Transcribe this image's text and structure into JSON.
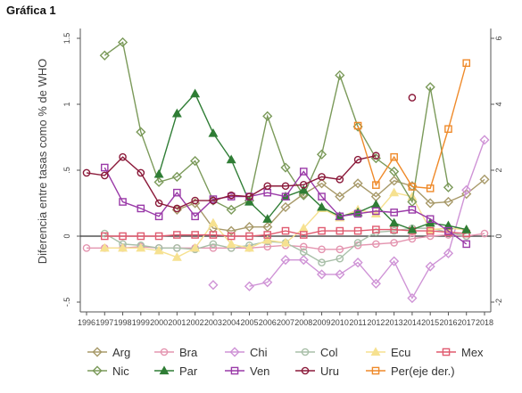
{
  "figure_title": "Gráfica 1",
  "chart_data": {
    "type": "line",
    "title": "",
    "ylabel": "Diferencia entre tasas como % de WHO",
    "xlabel": "",
    "x": [
      "1996",
      "1997",
      "1998",
      "1999",
      "2000",
      "2001",
      "2002",
      "2003",
      "2004",
      "2005",
      "2006",
      "2007",
      "2008",
      "2009",
      "2010",
      "2011",
      "2012",
      "2013",
      "2014",
      "2015",
      "2016",
      "2017",
      "2018"
    ],
    "ylim": [
      -0.5,
      1.5
    ],
    "yticks": [
      "-.5",
      "0",
      ".5",
      "1",
      "1.5"
    ],
    "ylim_right": [
      -2,
      6
    ],
    "yticks_right": [
      "-2",
      "0",
      "2",
      "4",
      "6"
    ],
    "zero_line": true,
    "grid": false,
    "legend_position": "bottom",
    "series": [
      {
        "name": "Arg",
        "color": "#a89a6a",
        "marker": "diamond",
        "axis": "left",
        "values": [
          null,
          null,
          null,
          null,
          null,
          0.2,
          0.25,
          0.06,
          0.04,
          0.07,
          0.07,
          0.22,
          0.32,
          0.4,
          0.3,
          0.4,
          0.3,
          0.42,
          0.38,
          0.25,
          0.26,
          0.32,
          0.43
        ]
      },
      {
        "name": "Bra",
        "color": "#e495b0",
        "marker": "circle",
        "axis": "left",
        "values": [
          -0.09,
          -0.09,
          -0.09,
          -0.08,
          -0.09,
          -0.09,
          -0.09,
          -0.09,
          -0.09,
          -0.09,
          -0.08,
          -0.07,
          -0.08,
          -0.1,
          -0.1,
          -0.07,
          -0.06,
          -0.05,
          -0.02,
          0.0,
          0.01,
          0.0,
          0.02
        ]
      },
      {
        "name": "Chi",
        "color": "#cf93d6",
        "marker": "diamond",
        "axis": "left",
        "values": [
          null,
          null,
          null,
          null,
          null,
          null,
          null,
          -0.37,
          null,
          -0.38,
          -0.35,
          -0.18,
          -0.18,
          -0.29,
          -0.29,
          -0.2,
          -0.36,
          -0.19,
          -0.47,
          -0.23,
          -0.13,
          0.35,
          0.73
        ]
      },
      {
        "name": "Col",
        "color": "#a8bfa8",
        "marker": "circle",
        "axis": "left",
        "values": [
          null,
          0.02,
          -0.06,
          -0.07,
          -0.09,
          -0.09,
          -0.1,
          -0.06,
          -0.09,
          -0.07,
          -0.04,
          -0.05,
          -0.12,
          -0.2,
          -0.17,
          -0.05,
          0.03,
          0.04,
          0.06,
          0.06,
          0.03,
          0.0,
          null
        ]
      },
      {
        "name": "Ecu",
        "color": "#f6e190",
        "marker": "triangle",
        "axis": "left",
        "values": [
          null,
          -0.09,
          -0.09,
          -0.09,
          -0.11,
          -0.16,
          -0.09,
          0.1,
          -0.06,
          -0.09,
          -0.03,
          -0.05,
          0.06,
          0.21,
          0.14,
          0.2,
          0.17,
          0.33,
          0.3,
          0.05,
          0.06,
          0.05,
          null
        ]
      },
      {
        "name": "Mex",
        "color": "#e05a6f",
        "marker": "square",
        "axis": "left",
        "values": [
          null,
          0.0,
          0.0,
          0.0,
          0.0,
          0.01,
          0.01,
          0.01,
          0.0,
          0.0,
          0.01,
          0.04,
          0.01,
          0.04,
          0.04,
          0.04,
          0.05,
          0.05,
          0.04,
          0.04,
          0.03,
          0.02,
          null
        ]
      },
      {
        "name": "Nic",
        "color": "#7b9a5a",
        "marker": "diamond",
        "axis": "left",
        "values": [
          null,
          1.37,
          1.47,
          0.79,
          0.41,
          0.45,
          0.57,
          0.27,
          0.2,
          0.27,
          0.91,
          0.52,
          0.31,
          0.62,
          1.22,
          0.83,
          0.59,
          0.49,
          0.26,
          1.13,
          0.37,
          null,
          null
        ]
      },
      {
        "name": "Par",
        "color": "#2f7d35",
        "marker": "triangle",
        "axis": "left",
        "values": [
          null,
          null,
          null,
          null,
          0.47,
          0.93,
          1.08,
          0.78,
          0.58,
          0.26,
          0.13,
          0.3,
          0.35,
          0.22,
          0.15,
          0.18,
          0.24,
          0.1,
          0.05,
          0.1,
          0.08,
          0.05,
          null
        ]
      },
      {
        "name": "Ven",
        "color": "#9a3aa8",
        "marker": "square",
        "axis": "left",
        "values": [
          null,
          0.52,
          0.26,
          0.21,
          0.15,
          0.33,
          0.15,
          0.28,
          0.3,
          0.3,
          0.33,
          0.3,
          0.49,
          0.3,
          0.15,
          0.17,
          0.19,
          0.18,
          0.2,
          0.13,
          0.04,
          -0.06,
          null
        ]
      },
      {
        "name": "Uru",
        "color": "#8b1a3a",
        "marker": "circle",
        "axis": "left",
        "values": [
          0.48,
          0.46,
          0.6,
          0.48,
          0.25,
          0.21,
          0.27,
          0.27,
          0.31,
          0.3,
          0.38,
          0.38,
          0.39,
          0.45,
          0.43,
          0.58,
          0.61,
          null,
          1.05,
          null,
          null,
          null,
          null
        ]
      },
      {
        "name": "Per(eje der.)",
        "color": "#ef8a2a",
        "marker": "square",
        "axis": "right",
        "values": [
          null,
          null,
          null,
          null,
          null,
          null,
          null,
          null,
          null,
          null,
          null,
          null,
          null,
          null,
          null,
          3.35,
          1.55,
          2.4,
          1.5,
          1.45,
          3.25,
          5.25,
          null
        ]
      }
    ]
  }
}
